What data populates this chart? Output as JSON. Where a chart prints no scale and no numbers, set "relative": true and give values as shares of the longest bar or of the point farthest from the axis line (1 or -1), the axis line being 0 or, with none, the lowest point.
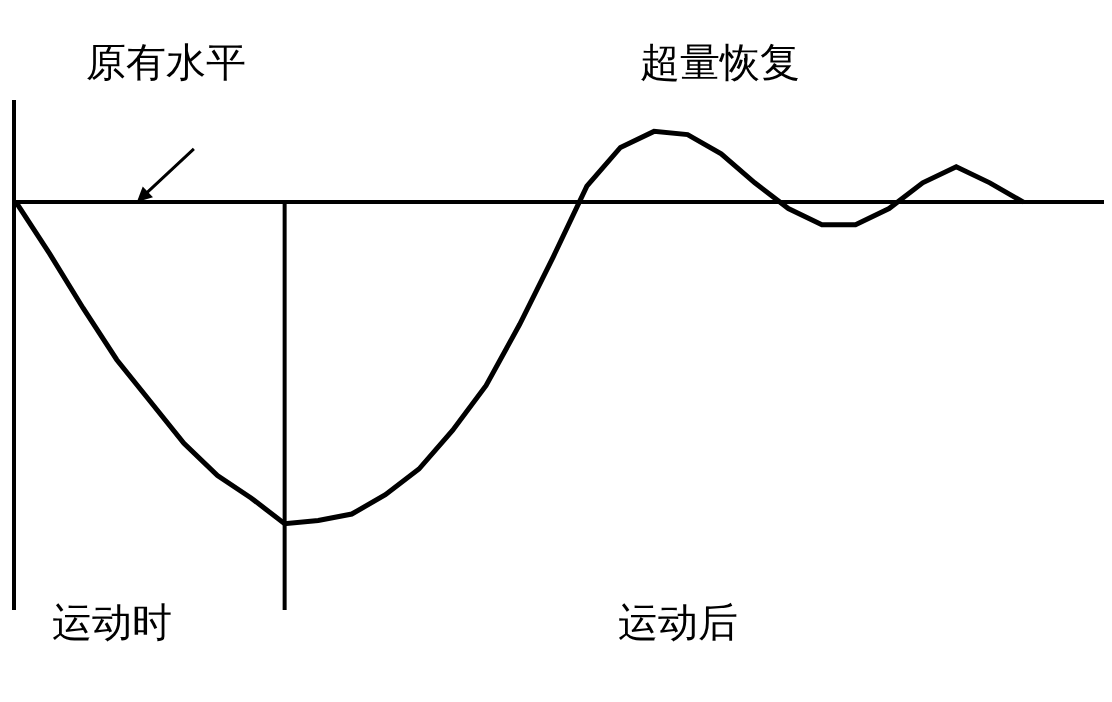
{
  "chart_data": {
    "type": "line",
    "relative": true,
    "color": "#000000",
    "categories": [
      null,
      null,
      null,
      null,
      null,
      null,
      null,
      null,
      null,
      null,
      null,
      null,
      null,
      null,
      null,
      null,
      null,
      null,
      null,
      null,
      null,
      null,
      null,
      null,
      null,
      null,
      null,
      null,
      null,
      null,
      null
    ],
    "values": [
      0,
      -0.16,
      -0.33,
      -0.49,
      -0.62,
      -0.75,
      -0.85,
      -0.92,
      -1.0,
      -0.99,
      -0.97,
      -0.91,
      -0.83,
      -0.71,
      -0.57,
      -0.38,
      -0.17,
      0.05,
      0.17,
      0.22,
      0.21,
      0.15,
      0.06,
      -0.02,
      -0.07,
      -0.07,
      -0.02,
      0.06,
      0.11,
      0.06,
      0
    ],
    "annotations": [
      "原有水平",
      "超量恢复",
      "运动时",
      "运动后"
    ],
    "grid": false,
    "marker": "none",
    "line_style": "solid"
  }
}
